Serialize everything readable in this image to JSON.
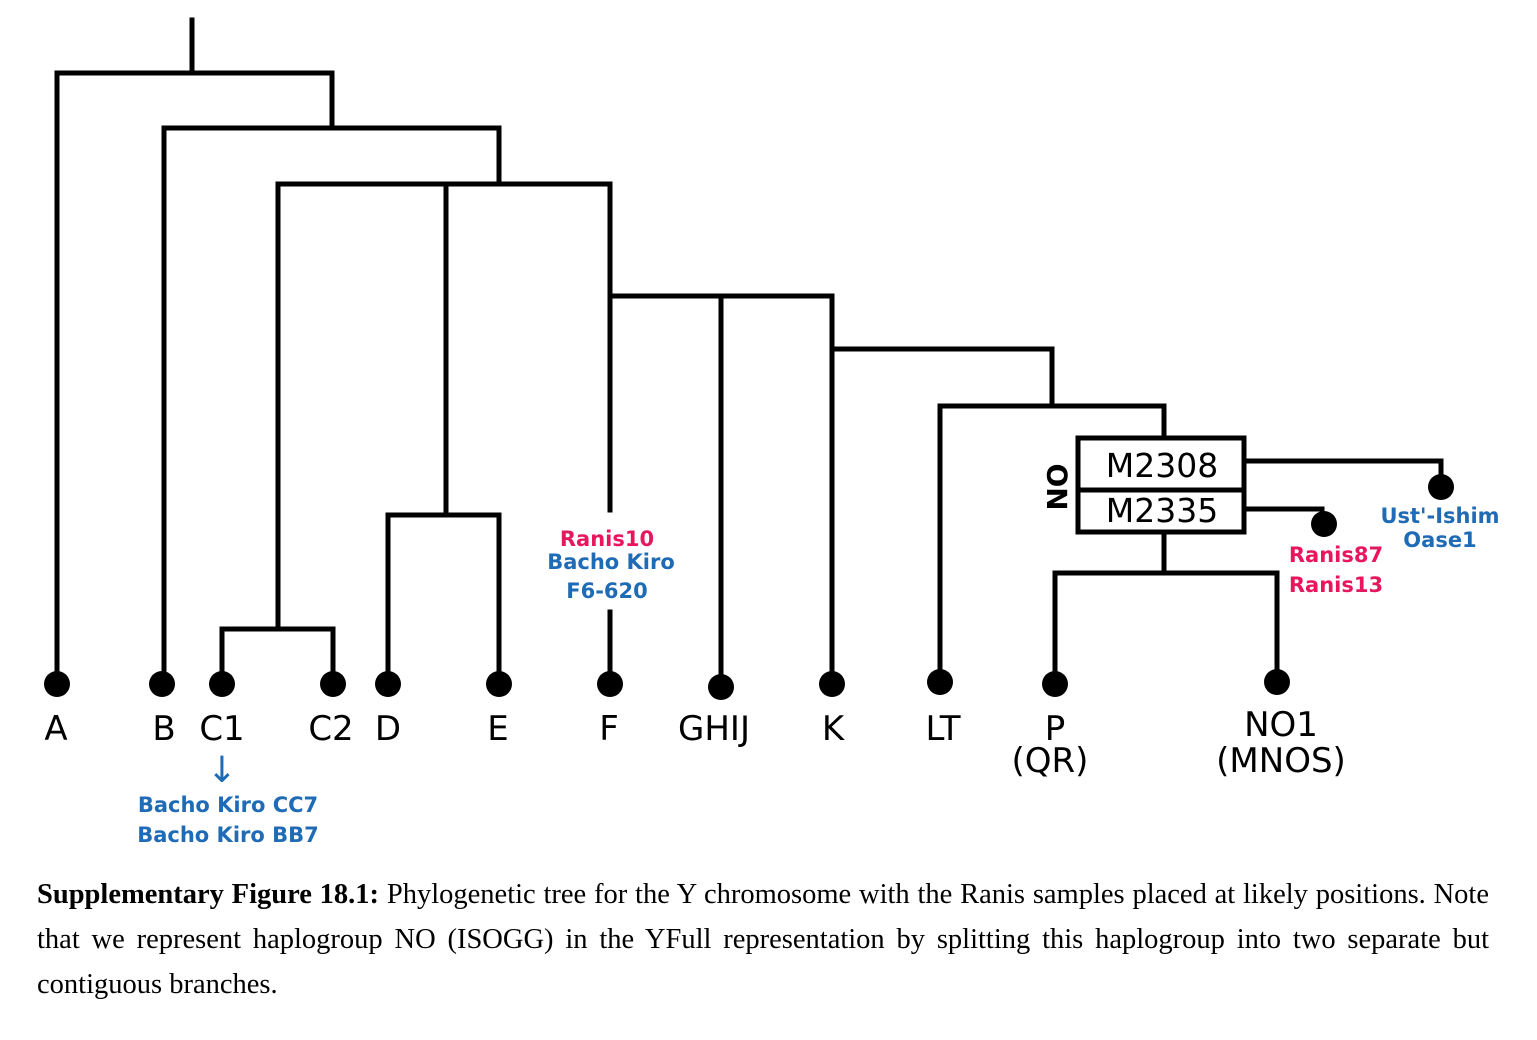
{
  "colors": {
    "pink": "#e8175d",
    "blue": "#1f6bb5",
    "line": "#000000"
  },
  "tips": {
    "A": "A",
    "B": "B",
    "C1": "C1",
    "C2": "C2",
    "D": "D",
    "E": "E",
    "F": "F",
    "GHIJ": "GHIJ",
    "K": "K",
    "LT": "LT",
    "P": "P",
    "P_sub": "(QR)",
    "NO1": "NO1",
    "NO1_sub": "(MNOS)"
  },
  "markers": {
    "no_group": "NO",
    "m2308": "M2308",
    "m2335": "M2335"
  },
  "samples": {
    "c1_arrow": "↓",
    "c1_line1": "Bacho Kiro CC7",
    "c1_line2": "Bacho Kiro BB7",
    "f_line1": "Ranis10",
    "f_line2": "Bacho Kiro",
    "f_line3": "F6-620",
    "m2335_line1": "Ranis87",
    "m2335_line2": "Ranis13",
    "m2308_line1": "Ust'-Ishim",
    "m2308_line2": "Oase1"
  },
  "caption": {
    "bold": "Supplementary Figure 18.1:",
    "text": " Phylogenetic tree for the Y chromosome with the Ranis samples placed at likely positions. Note that we represent haplogroup NO (ISOGG) in the YFull representation by splitting this haplogroup into two separate but contiguous branches."
  }
}
